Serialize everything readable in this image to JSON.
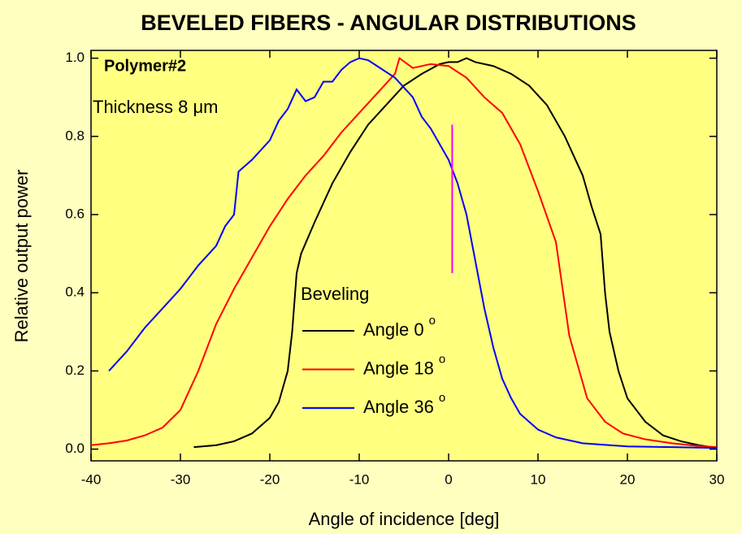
{
  "chart_data": {
    "type": "line",
    "title": "BEVELED FIBERS - ANGULAR DISTRIBUTIONS",
    "x_label": "Angle of incidence [deg]",
    "y_label": "Relative output power",
    "annotations": [
      "Polymer#2",
      "Thickness 8 μm"
    ],
    "legend_title": "Beveling",
    "legend_superscript": "o",
    "xlim": [
      -40,
      30
    ],
    "ylim": [
      -0.03,
      1.02
    ],
    "xticks": [
      -40,
      -30,
      -20,
      -10,
      0,
      10,
      20,
      30
    ],
    "yticks": [
      {
        "value": 0,
        "label": "0.0"
      },
      {
        "value": 0.2,
        "label": "0.2"
      },
      {
        "value": 0.4,
        "label": "0.4"
      },
      {
        "value": 0.6,
        "label": "0.6"
      },
      {
        "value": 0.8,
        "label": "0.8"
      },
      {
        "value": 1,
        "label": "1.0"
      }
    ],
    "series": [
      {
        "name": "Angle 0",
        "color": "#000000",
        "x": [
          -28.5,
          -26,
          -24,
          -22,
          -20,
          -19,
          -18,
          -17.5,
          -17,
          -16.5,
          -15,
          -13,
          -11,
          -9,
          -7,
          -5,
          -3,
          -1,
          0,
          1,
          2,
          3,
          5,
          7,
          9,
          11,
          13,
          15,
          16,
          17,
          17.5,
          18,
          19,
          20,
          22,
          24,
          26,
          28,
          30
        ],
        "values": [
          0.005,
          0.01,
          0.02,
          0.04,
          0.08,
          0.12,
          0.2,
          0.3,
          0.45,
          0.5,
          0.58,
          0.68,
          0.76,
          0.83,
          0.88,
          0.93,
          0.96,
          0.985,
          0.99,
          0.99,
          1.0,
          0.99,
          0.98,
          0.96,
          0.93,
          0.88,
          0.8,
          0.7,
          0.62,
          0.55,
          0.4,
          0.3,
          0.2,
          0.13,
          0.07,
          0.035,
          0.02,
          0.01,
          0.003
        ]
      },
      {
        "name": "Angle 18",
        "color": "#ff0000",
        "x": [
          -40,
          -38,
          -36,
          -34,
          -32,
          -30,
          -28,
          -26,
          -24,
          -22,
          -20,
          -18,
          -16,
          -14,
          -12,
          -10,
          -8,
          -6,
          -5.5,
          -4,
          -2,
          0,
          2,
          4,
          6,
          8,
          10,
          12,
          13.5,
          15.5,
          17.5,
          19.5,
          22,
          25,
          28,
          30
        ],
        "values": [
          0.01,
          0.015,
          0.022,
          0.035,
          0.055,
          0.1,
          0.2,
          0.32,
          0.41,
          0.49,
          0.57,
          0.64,
          0.7,
          0.75,
          0.81,
          0.86,
          0.91,
          0.96,
          1.0,
          0.975,
          0.985,
          0.98,
          0.95,
          0.9,
          0.86,
          0.78,
          0.66,
          0.53,
          0.29,
          0.13,
          0.07,
          0.04,
          0.025,
          0.015,
          0.008,
          0.005
        ]
      },
      {
        "name": "Angle 36",
        "color": "#0000ff",
        "x": [
          -38,
          -36,
          -34,
          -32,
          -30,
          -28,
          -26,
          -25,
          -24,
          -23.5,
          -22,
          -20,
          -19,
          -18,
          -17,
          -16,
          -15,
          -14,
          -13,
          -12,
          -11,
          -10,
          -9,
          -8,
          -6,
          -4,
          -3,
          -2,
          -1,
          0,
          1,
          2,
          3,
          4,
          5,
          6,
          7,
          8,
          10,
          12,
          15,
          20,
          25,
          30
        ],
        "values": [
          0.2,
          0.25,
          0.31,
          0.36,
          0.41,
          0.47,
          0.52,
          0.57,
          0.6,
          0.71,
          0.74,
          0.79,
          0.84,
          0.87,
          0.92,
          0.89,
          0.9,
          0.94,
          0.94,
          0.97,
          0.99,
          1.0,
          0.995,
          0.98,
          0.95,
          0.9,
          0.85,
          0.82,
          0.78,
          0.74,
          0.68,
          0.6,
          0.48,
          0.36,
          0.26,
          0.18,
          0.13,
          0.09,
          0.05,
          0.03,
          0.015,
          0.007,
          0.005,
          0.003
        ]
      }
    ],
    "vertical_line": {
      "x": 0.4,
      "y": [
        0.45,
        0.83
      ],
      "color": "#ff00ff"
    }
  }
}
